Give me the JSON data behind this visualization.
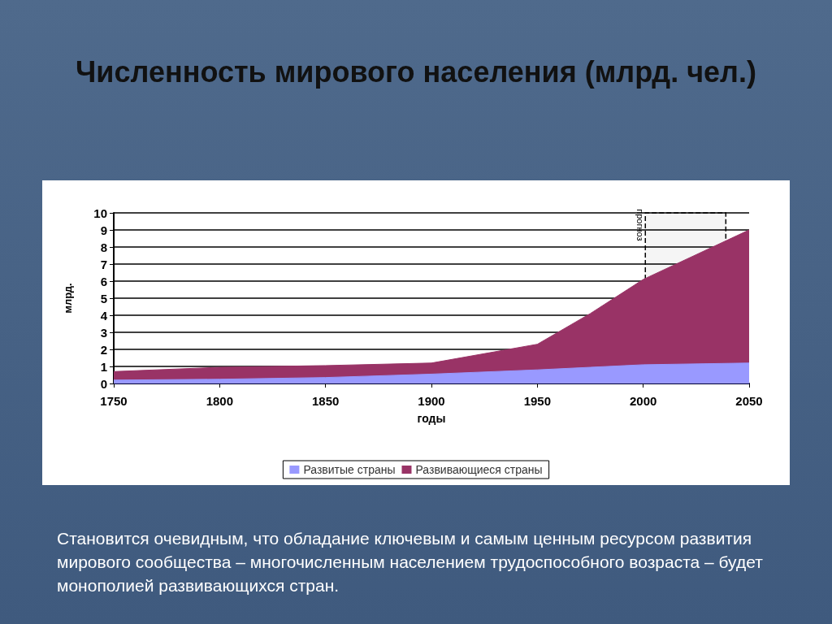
{
  "chart_data": {
    "type": "area",
    "title": "Численность мирового населения (млрд. чел.)",
    "xlabel": "годы",
    "ylabel": "млрд.",
    "stacked": true,
    "x": [
      1750,
      1800,
      1850,
      1900,
      1950,
      1975,
      2000,
      2050
    ],
    "series": [
      {
        "name": "Развитые страны",
        "color": "#9999ff",
        "values": [
          0.2,
          0.25,
          0.35,
          0.55,
          0.8,
          0.95,
          1.1,
          1.2
        ]
      },
      {
        "name": "Развивающиеся страны",
        "color": "#993366",
        "values": [
          0.5,
          0.7,
          0.7,
          0.65,
          1.5,
          3.15,
          5.0,
          7.8
        ]
      }
    ],
    "xlim": [
      1750,
      2050
    ],
    "xticks": [
      1750,
      1800,
      1850,
      1900,
      1950,
      2000,
      2050
    ],
    "ylim": [
      0,
      10
    ],
    "yticks": [
      0,
      1,
      2,
      3,
      4,
      5,
      6,
      7,
      8,
      9,
      10
    ],
    "grid": "y",
    "legend": "bottom",
    "marker": "none",
    "bands": [
      {
        "axis": "x",
        "from": 2001,
        "to": 2039,
        "label": "прогноз",
        "color": "#000000"
      }
    ],
    "annotations": [
      "Становится очевидным, что обладание ключевым и самым ценным ресурсом развития мирового сообщества – многочисленным населением трудоспособного возраста – будет монополией развивающихся стран."
    ]
  }
}
